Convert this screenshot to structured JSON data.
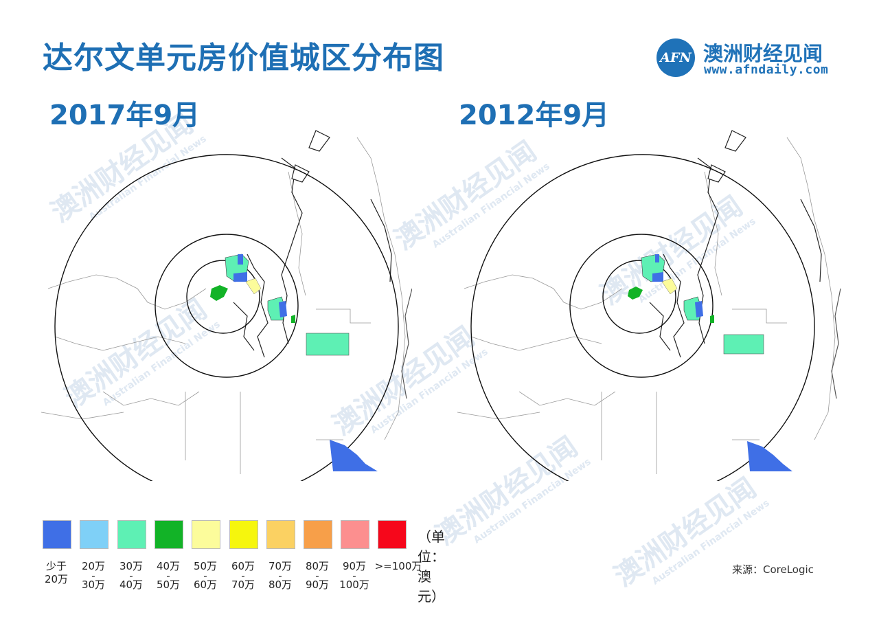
{
  "header": {
    "title": "达尔文单元房价值城区分布图",
    "logo_text": "AFN",
    "brand_name": "澳洲财经见闻",
    "brand_url": "www.afndaily.com"
  },
  "maps": {
    "left_date": "2017年9月",
    "right_date": "2012年9月"
  },
  "watermark": {
    "text": "澳洲财经见闻",
    "subtext": "Australian Financial News"
  },
  "legend": {
    "unit_label": "（单位：澳元）",
    "items": [
      {
        "color": "#3f6fe6",
        "line1": "少于",
        "line2": "20万"
      },
      {
        "color": "#7fd0f7",
        "line1": "20万",
        "line2": "30万"
      },
      {
        "color": "#5ef0b4",
        "line1": "30万",
        "line2": "40万"
      },
      {
        "color": "#12b327",
        "line1": "40万",
        "line2": "50万"
      },
      {
        "color": "#fcfc9b",
        "line1": "50万",
        "line2": "60万"
      },
      {
        "color": "#f6f60d",
        "line1": "60万",
        "line2": "70万"
      },
      {
        "color": "#fbd162",
        "line1": "70万",
        "line2": "80万"
      },
      {
        "color": "#f79f49",
        "line1": "80万",
        "line2": "90万"
      },
      {
        "color": "#fc8f8f",
        "line1": "90万",
        "line2": "100万"
      },
      {
        "color": "#f6071b",
        "line1": ">=100万",
        "line2": ""
      }
    ]
  },
  "source": "来源：CoreLogic",
  "colors": {
    "title_blue": "#1e6fb4",
    "brand_blue": "#1f72b8"
  }
}
